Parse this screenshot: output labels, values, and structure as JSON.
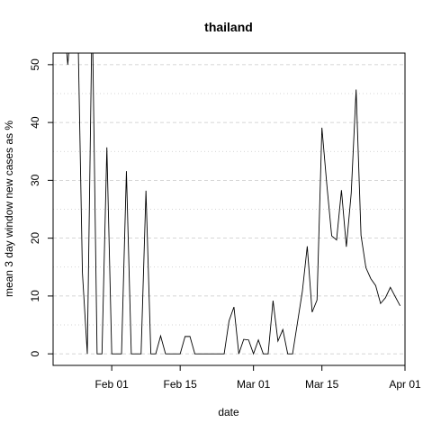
{
  "chart_data": {
    "type": "line",
    "title": "thailand",
    "xlabel": "date",
    "ylabel": "mean  3  day window new cases as %",
    "x_start": "2020-01-22",
    "x_ticks": [
      {
        "label": "Feb 01",
        "date": "2020-02-01"
      },
      {
        "label": "Feb 15",
        "date": "2020-02-15"
      },
      {
        "label": "Mar 01",
        "date": "2020-03-01"
      },
      {
        "label": "Mar 15",
        "date": "2020-03-15"
      },
      {
        "label": "Apr 01",
        "date": "2020-04-01"
      }
    ],
    "y_ticks": [
      0,
      10,
      20,
      30,
      40,
      50
    ],
    "xlim": [
      "2020-01-20",
      "2020-04-01"
    ],
    "ylim": [
      -2,
      52
    ],
    "grid": true,
    "series": [
      {
        "values": [
          60,
          50,
          60,
          60,
          14,
          0,
          60,
          0,
          0,
          35.7,
          0,
          0,
          0,
          31.6,
          0,
          0,
          0,
          28.2,
          0,
          0,
          3.1,
          0,
          0,
          0,
          0,
          3.0,
          3.0,
          0,
          0,
          0,
          0,
          0,
          0,
          0,
          5.7,
          8.1,
          0,
          2.5,
          2.4,
          0,
          2.4,
          0,
          0,
          9.2,
          2.2,
          4.2,
          0,
          0,
          5.4,
          10.8,
          18.6,
          7.2,
          9.3,
          39.1,
          29.3,
          20.4,
          19.7,
          28.3,
          18.5,
          27.8,
          45.7,
          20.5,
          14.9,
          13.0,
          11.8,
          8.7,
          9.7,
          11.5,
          9.9,
          8.3
        ]
      }
    ]
  }
}
